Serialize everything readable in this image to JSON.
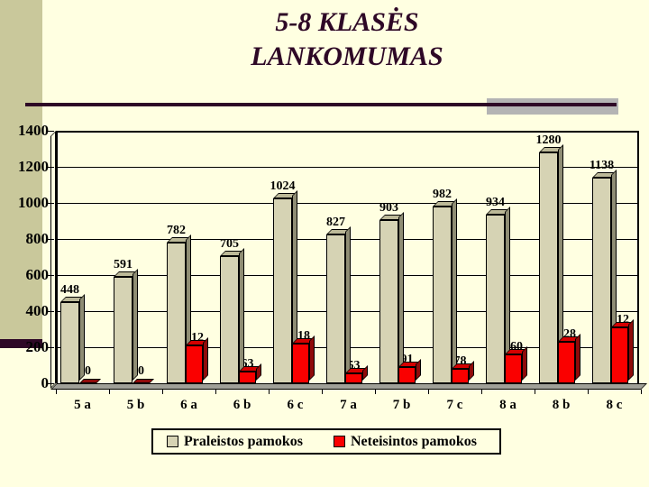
{
  "title": {
    "line1": "5-8 KLASĖS",
    "line2": "LANKOMUMAS"
  },
  "colors": {
    "background": "#FFFFE1",
    "left_band": "#C9C89B",
    "accent_purple": "#2E0826",
    "accent_gray": "#B4B4B4",
    "floor": "#A0A098",
    "series1_front": "#D6D3B4",
    "series1_top": "#BCB998",
    "series1_side": "#8F8D74",
    "series2_front": "#FA0000",
    "series2_top": "#D40000",
    "series2_side": "#8F0A0A"
  },
  "chart_data": {
    "type": "bar",
    "style": "3d-column",
    "title": "5-8 KLASĖS LANKOMUMAS",
    "categories": [
      "5 a",
      "5 b",
      "6 a",
      "6 b",
      "6 c",
      "7 a",
      "7 b",
      "7 c",
      "8 a",
      "8 b",
      "8 c"
    ],
    "series": [
      {
        "name": "Praleistos pamokos",
        "values": [
          448,
          591,
          782,
          705,
          1024,
          827,
          903,
          982,
          934,
          1280,
          1138
        ]
      },
      {
        "name": "Neteisintos pamokos",
        "values": [
          0,
          0,
          212,
          63,
          218,
          53,
          91,
          78,
          160,
          228,
          312
        ]
      }
    ],
    "ylim": [
      0,
      1400
    ],
    "yticks": [
      0,
      200,
      400,
      600,
      800,
      1000,
      1200,
      1400
    ],
    "grid": true,
    "data_labels": true,
    "legend_position": "bottom"
  }
}
